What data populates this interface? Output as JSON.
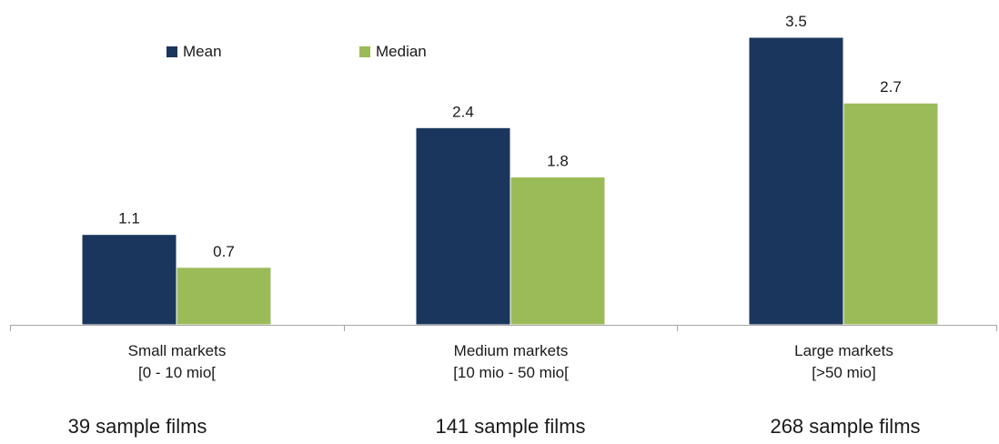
{
  "chart_data": {
    "type": "bar",
    "categories": [
      {
        "name": "Small markets",
        "range": "[0 - 10 mio["
      },
      {
        "name": "Medium markets",
        "range": "[10 mio - 50 mio["
      },
      {
        "name": "Large markets",
        "range": "[>50 mio]"
      }
    ],
    "series": [
      {
        "name": "Mean",
        "color": "#1b365d",
        "values": [
          1.1,
          2.4,
          3.5
        ]
      },
      {
        "name": "Median",
        "color": "#9bbb59",
        "values": [
          0.7,
          1.8,
          2.7
        ]
      }
    ],
    "data_labels": [
      [
        "1.1",
        "2.4",
        "3.5"
      ],
      [
        "0.7",
        "1.8",
        "2.7"
      ]
    ],
    "ylim": [
      0,
      3.5
    ],
    "grid": false,
    "legend_position": "top-left"
  },
  "sample_notes": [
    "39 sample films",
    "141 sample films",
    "268 sample films"
  ]
}
